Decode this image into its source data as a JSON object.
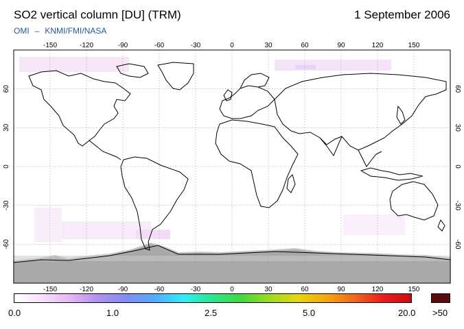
{
  "header": {
    "title": "SO2 vertical column [DU] (TRM)",
    "date": "1 September 2006",
    "credit_left": "OMI",
    "credit_sep": "–",
    "credit_right": "KNMI/FMI/NASA"
  },
  "map": {
    "projection": "equirectangular",
    "lon_ticks": [
      "-150",
      "-120",
      "-90",
      "-60",
      "-30",
      "0",
      "30",
      "60",
      "90",
      "120",
      "150"
    ],
    "lat_ticks": [
      "60",
      "30",
      "0",
      "-30",
      "-60"
    ],
    "colors": {
      "land_outline": "#000000",
      "gridline": "#9a9a9a",
      "no_data": "#a9a9a9",
      "no_data_edge": "#c8c8c8",
      "background_noise": "#f2dcf5"
    }
  },
  "colorbar": {
    "labels": [
      "0.0",
      "1.0",
      "2.5",
      "5.0",
      "20.0",
      ">50"
    ],
    "overflow_color": "#5a0b0b",
    "gradient": [
      "#ffffff",
      "#f7e0fb",
      "#e6b3f2",
      "#b08ff0",
      "#7f8cf5",
      "#4fb0ff",
      "#2cf0f5",
      "#29e68a",
      "#3fd93a",
      "#9bdd1e",
      "#e7d60d",
      "#f5a70a",
      "#f2681a",
      "#ee1c1c",
      "#c30e14"
    ]
  }
}
